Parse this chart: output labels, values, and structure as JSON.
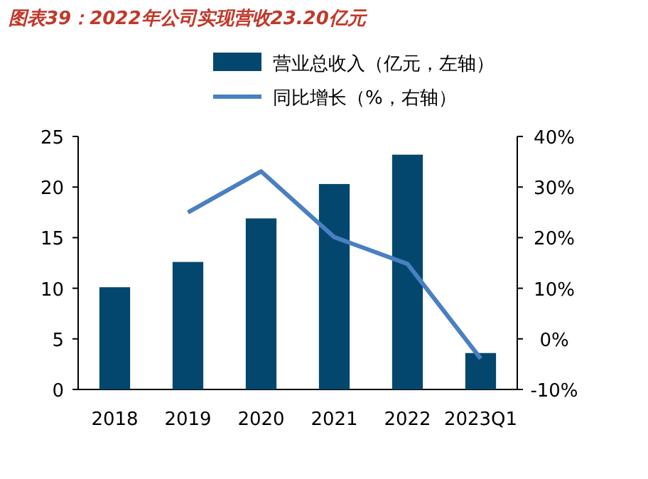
{
  "chart_data": {
    "type": "bar",
    "title": "图表39：2022年公司实现营收23.20亿元",
    "categories": [
      "2018",
      "2019",
      "2020",
      "2021",
      "2022",
      "2023Q1"
    ],
    "series": [
      {
        "name": "营业总收入（亿元，左轴）",
        "color": "#03476e",
        "values": [
          10.1,
          12.6,
          16.9,
          20.3,
          23.2,
          3.6
        ]
      },
      {
        "name": "同比增长（%，右轴）",
        "type": "line",
        "axis": "y2",
        "color": "#4a7fc1",
        "values": [
          null,
          25.0,
          33.1,
          20.1,
          14.8,
          -3.9
        ]
      }
    ],
    "ylim": [
      0,
      25
    ],
    "yticks": [
      0,
      5,
      10,
      15,
      20,
      25
    ],
    "y2lim": [
      -10,
      40
    ],
    "y2ticks": [
      {
        "value": -10,
        "label": "-10%"
      },
      {
        "value": 0,
        "label": "0%"
      },
      {
        "value": 10,
        "label": "10%"
      },
      {
        "value": 20,
        "label": "20%"
      },
      {
        "value": 30,
        "label": "30%"
      },
      {
        "value": 40,
        "label": "40%"
      }
    ],
    "legend": "top"
  }
}
